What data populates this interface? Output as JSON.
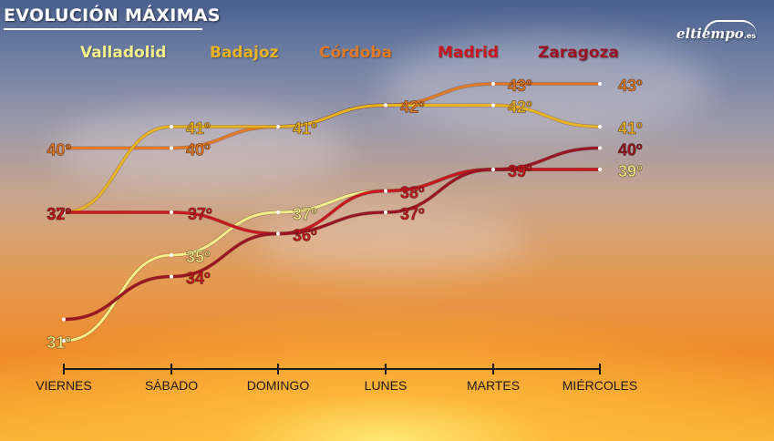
{
  "title": "EVOLUCIÓN MÁXIMAS",
  "logo": {
    "text": "eltiempo",
    "suffix": ".es"
  },
  "chart_data": {
    "type": "line",
    "categories": [
      "VIERNES",
      "SÁBADO",
      "DOMINGO",
      "LUNES",
      "MARTES",
      "MIÉRCOLES"
    ],
    "series": [
      {
        "name": "Valladolid",
        "color": "#f2ee8a",
        "values": [
          31,
          35,
          37,
          38,
          39,
          39
        ]
      },
      {
        "name": "Badajoz",
        "color": "#e8b322",
        "values": [
          37,
          41,
          41,
          42,
          42,
          41
        ]
      },
      {
        "name": "Córdoba",
        "color": "#e07a27",
        "values": [
          40,
          40,
          41,
          42,
          43,
          43
        ]
      },
      {
        "name": "Madrid",
        "color": "#c8171f",
        "values": [
          37,
          37,
          36,
          38,
          39,
          39
        ]
      },
      {
        "name": "Zaragoza",
        "color": "#9a1424",
        "values": [
          32,
          34,
          36,
          37,
          39,
          40
        ]
      }
    ],
    "labels": [
      {
        "text": "31º",
        "color": "#f2ee8a"
      },
      {
        "text": "32º",
        "color": "#c8171f"
      },
      {
        "text": "37º",
        "color": "#c8171f"
      },
      {
        "text": "40º",
        "color": "#e07a27"
      },
      {
        "text": "35º",
        "color": "#f2ee8a"
      },
      {
        "text": "34º",
        "color": "#c8171f"
      },
      {
        "text": "37º",
        "color": "#c8171f"
      },
      {
        "text": "41º",
        "color": "#e8b322"
      },
      {
        "text": "40º",
        "color": "#e07a27"
      },
      {
        "text": "37º",
        "color": "#f2ee8a"
      },
      {
        "text": "36º",
        "color": "#c8171f"
      },
      {
        "text": "41º",
        "color": "#e8b322"
      },
      {
        "text": "38º",
        "color": "#c8171f"
      },
      {
        "text": "37º",
        "color": "#c8171f"
      },
      {
        "text": "42º",
        "color": "#e07a27"
      },
      {
        "text": "39º",
        "color": "#c8171f"
      },
      {
        "text": "42º",
        "color": "#e8b322"
      },
      {
        "text": "43º",
        "color": "#e07a27"
      },
      {
        "text": "40º",
        "color": "#9a1424"
      },
      {
        "text": "39º",
        "color": "#f2ee8a"
      },
      {
        "text": "41º",
        "color": "#e8b322"
      },
      {
        "text": "43º",
        "color": "#e07a27"
      }
    ]
  }
}
